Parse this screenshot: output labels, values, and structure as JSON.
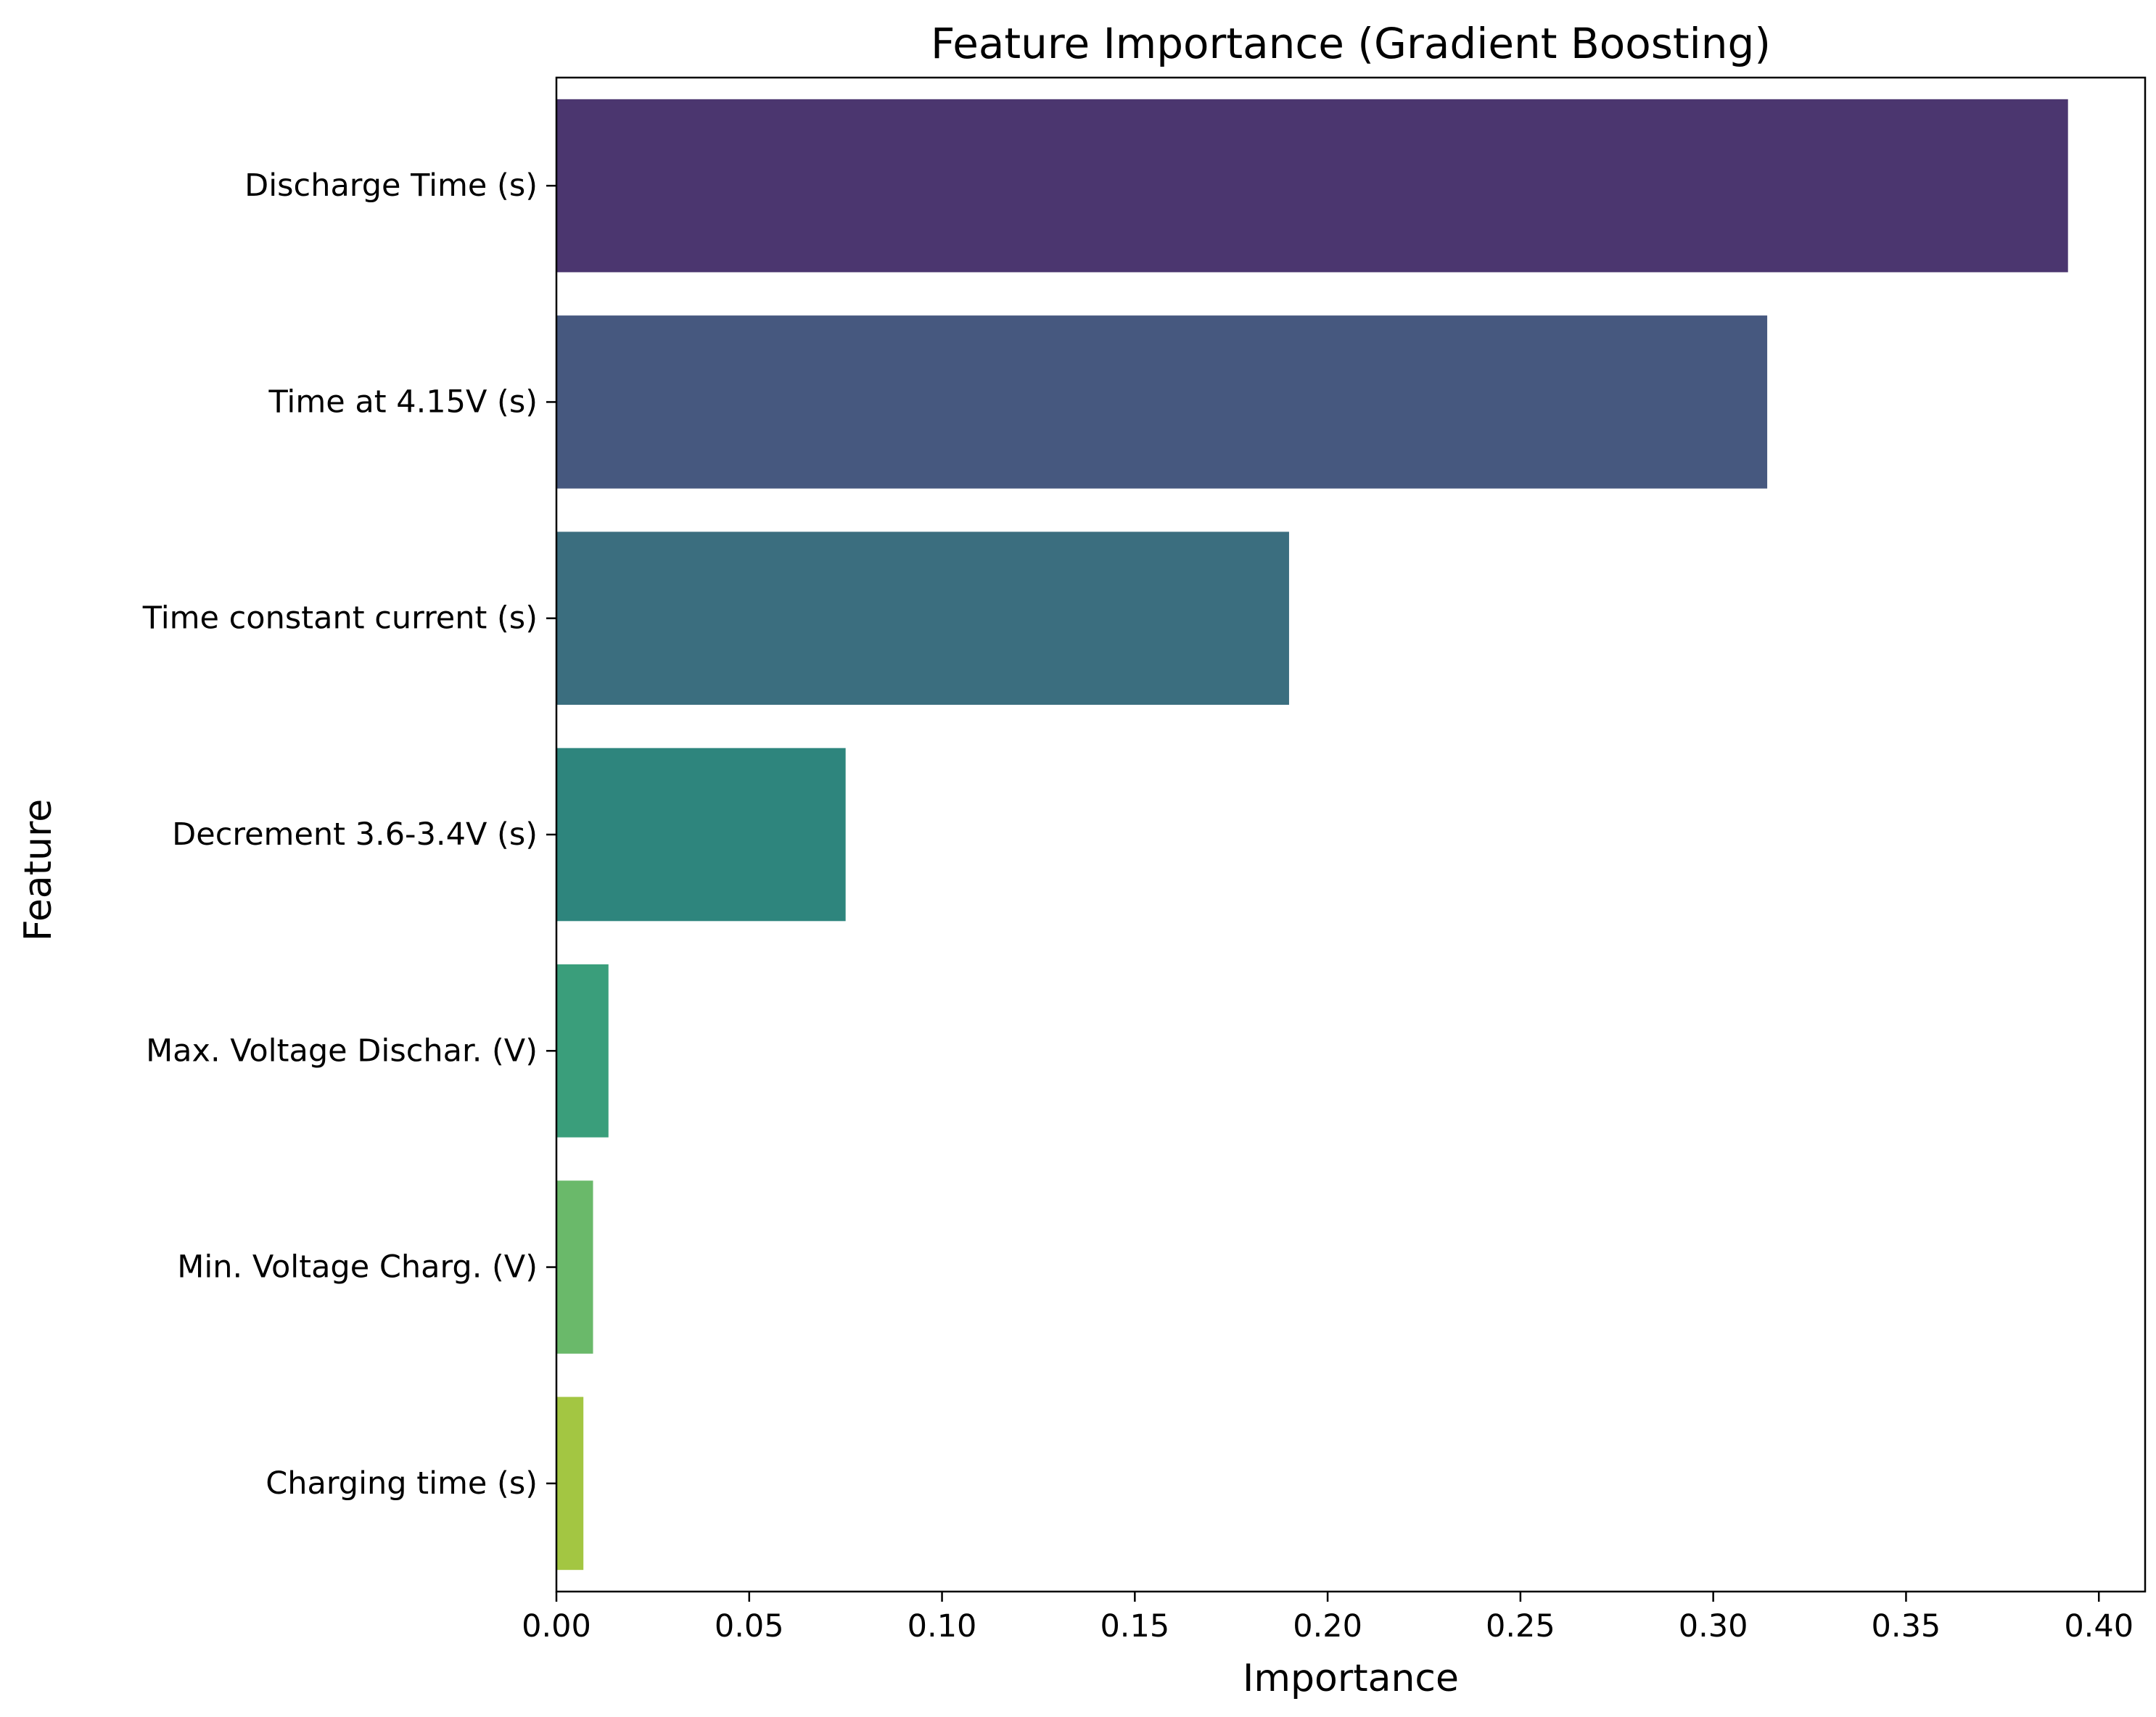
{
  "chart_data": {
    "type": "bar",
    "orientation": "horizontal",
    "title": "Feature Importance (Gradient Boosting)",
    "xlabel": "Importance",
    "ylabel": "Feature",
    "xlim": [
      0,
      0.412
    ],
    "xticks": [
      0.0,
      0.05,
      0.1,
      0.15,
      0.2,
      0.25,
      0.3,
      0.35,
      0.4
    ],
    "xtick_labels": [
      "0.00",
      "0.05",
      "0.10",
      "0.15",
      "0.20",
      "0.25",
      "0.30",
      "0.35",
      "0.40"
    ],
    "grid": false,
    "legend": "none",
    "categories": [
      "Discharge Time (s)",
      "Time at 4.15V (s)",
      "Time constant current (s)",
      "Decrement 3.6-3.4V (s)",
      "Max. Voltage Dischar. (V)",
      "Min. Voltage Charg. (V)",
      "Charging time (s)"
    ],
    "values": [
      0.392,
      0.314,
      0.19,
      0.075,
      0.0135,
      0.0095,
      0.007
    ],
    "colors": [
      "#4b366f",
      "#46587f",
      "#3b6e7f",
      "#2e857d",
      "#3a9e7b",
      "#6ab96a",
      "#a3c642"
    ]
  }
}
